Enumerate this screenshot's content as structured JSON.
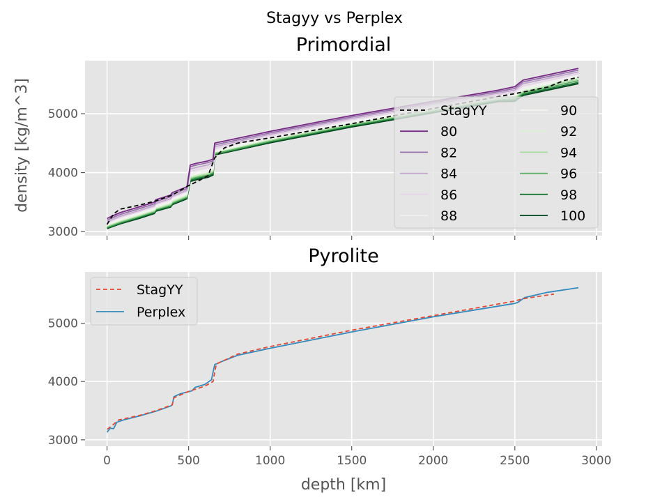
{
  "figure": {
    "suptitle": "Stagyy vs Perplex"
  },
  "chart_data": [
    {
      "type": "line",
      "title": "Primordial",
      "xlabel": "",
      "ylabel": "density [kg/m^3]",
      "xlim": [
        -135,
        3035
      ],
      "ylim": [
        2930,
        5900
      ],
      "xticks": [
        0,
        500,
        1000,
        1500,
        2000,
        2500,
        3000
      ],
      "yticks": [
        3000,
        4000,
        5000
      ],
      "show_xtick_labels": false,
      "grid": true,
      "legend": {
        "placement": "lower-right",
        "columns": 2
      },
      "series": [
        {
          "name": "StagYY",
          "style": "dashed",
          "color": "#000000",
          "x": [
            0,
            40,
            80,
            200,
            300,
            400,
            500,
            560,
            620,
            660,
            720,
            800,
            1000,
            1500,
            2000,
            2500,
            2700,
            2800,
            2890
          ],
          "y": [
            3120,
            3300,
            3380,
            3450,
            3520,
            3620,
            3780,
            3860,
            3950,
            4250,
            4420,
            4500,
            4590,
            4830,
            5090,
            5340,
            5450,
            5560,
            5620
          ]
        },
        {
          "name": "80",
          "color": "#762a83",
          "x": [
            0,
            20,
            80,
            200,
            290,
            300,
            390,
            400,
            490,
            510,
            550,
            620,
            650,
            660,
            1000,
            1500,
            2000,
            2400,
            2500,
            2550,
            2890
          ],
          "y": [
            3220,
            3250,
            3320,
            3420,
            3500,
            3540,
            3620,
            3660,
            3760,
            4130,
            4160,
            4200,
            4230,
            4500,
            4700,
            4970,
            5210,
            5400,
            5460,
            5570,
            5770
          ]
        },
        {
          "name": "82",
          "color": "#9970ab",
          "x": [
            0,
            20,
            80,
            200,
            290,
            300,
            390,
            400,
            490,
            510,
            550,
            620,
            650,
            660,
            1000,
            1500,
            2000,
            2400,
            2500,
            2550,
            2890
          ],
          "y": [
            3190,
            3220,
            3290,
            3390,
            3470,
            3510,
            3590,
            3630,
            3730,
            4100,
            4130,
            4170,
            4200,
            4470,
            4675,
            4945,
            5185,
            5375,
            5430,
            5540,
            5740
          ]
        },
        {
          "name": "84",
          "color": "#c2a5cf",
          "x": [
            0,
            20,
            80,
            200,
            290,
            300,
            390,
            400,
            490,
            510,
            550,
            620,
            650,
            660,
            1000,
            1500,
            2000,
            2400,
            2500,
            2550,
            2890
          ],
          "y": [
            3160,
            3190,
            3260,
            3360,
            3440,
            3480,
            3560,
            3600,
            3700,
            4060,
            4090,
            4130,
            4170,
            4440,
            4650,
            4920,
            5160,
            5350,
            5400,
            5510,
            5710
          ]
        },
        {
          "name": "86",
          "color": "#e7d4e8",
          "x": [
            0,
            20,
            80,
            200,
            290,
            300,
            390,
            400,
            490,
            510,
            550,
            620,
            650,
            660,
            1000,
            1500,
            2000,
            2400,
            2500,
            2550,
            2890
          ],
          "y": [
            3140,
            3170,
            3240,
            3340,
            3420,
            3460,
            3540,
            3580,
            3680,
            4020,
            4050,
            4090,
            4130,
            4410,
            4625,
            4895,
            5135,
            5325,
            5370,
            5470,
            5680
          ]
        },
        {
          "name": "88",
          "color": "#f2f0f2",
          "x": [
            0,
            20,
            80,
            200,
            290,
            300,
            390,
            400,
            490,
            510,
            550,
            620,
            650,
            660,
            1000,
            1500,
            2000,
            2400,
            2500,
            2550,
            2890
          ],
          "y": [
            3120,
            3150,
            3220,
            3320,
            3400,
            3440,
            3520,
            3560,
            3660,
            3980,
            4010,
            4050,
            4090,
            4380,
            4600,
            4870,
            5110,
            5300,
            5340,
            5440,
            5650
          ]
        },
        {
          "name": "90",
          "color": "#f1f5ee",
          "x": [
            0,
            20,
            80,
            200,
            290,
            300,
            390,
            400,
            490,
            510,
            550,
            620,
            650,
            660,
            1000,
            1500,
            2000,
            2400,
            2500,
            2550,
            2890
          ],
          "y": [
            3110,
            3140,
            3200,
            3300,
            3380,
            3420,
            3500,
            3540,
            3640,
            3950,
            3980,
            4020,
            4060,
            4360,
            4580,
            4850,
            5090,
            5280,
            5310,
            5410,
            5630
          ]
        },
        {
          "name": "92",
          "color": "#d9f0d3",
          "x": [
            0,
            20,
            80,
            200,
            290,
            300,
            390,
            400,
            490,
            510,
            550,
            620,
            650,
            660,
            1000,
            1500,
            2000,
            2400,
            2500,
            2550,
            2890
          ],
          "y": [
            3100,
            3125,
            3185,
            3285,
            3365,
            3400,
            3480,
            3520,
            3620,
            3930,
            3960,
            4000,
            4040,
            4350,
            4565,
            4835,
            5075,
            5265,
            5290,
            5390,
            5610
          ]
        },
        {
          "name": "94",
          "color": "#a6dba0",
          "x": [
            0,
            20,
            80,
            200,
            290,
            300,
            390,
            400,
            490,
            510,
            550,
            620,
            650,
            660,
            1000,
            1500,
            2000,
            2400,
            2500,
            2550,
            2890
          ],
          "y": [
            3090,
            3110,
            3170,
            3270,
            3350,
            3390,
            3460,
            3500,
            3600,
            3910,
            3940,
            3980,
            4020,
            4340,
            4550,
            4820,
            5060,
            5250,
            5270,
            5370,
            5590
          ]
        },
        {
          "name": "96",
          "color": "#5aae61",
          "x": [
            0,
            20,
            80,
            200,
            290,
            300,
            390,
            400,
            490,
            510,
            550,
            620,
            650,
            660,
            1000,
            1500,
            2000,
            2400,
            2500,
            2550,
            2890
          ],
          "y": [
            3075,
            3095,
            3155,
            3255,
            3335,
            3375,
            3445,
            3485,
            3585,
            3890,
            3920,
            3960,
            4000,
            4320,
            4535,
            4805,
            5045,
            5235,
            5250,
            5350,
            5560
          ]
        },
        {
          "name": "98",
          "color": "#1b7837",
          "x": [
            0,
            20,
            80,
            200,
            290,
            300,
            390,
            400,
            490,
            510,
            550,
            620,
            650,
            660,
            1000,
            1500,
            2000,
            2400,
            2500,
            2550,
            2890
          ],
          "y": [
            3060,
            3080,
            3140,
            3240,
            3320,
            3360,
            3430,
            3470,
            3570,
            3870,
            3900,
            3940,
            3980,
            4310,
            4520,
            4790,
            5030,
            5220,
            5230,
            5330,
            5530
          ]
        },
        {
          "name": "100",
          "color": "#00441b",
          "x": [
            0,
            20,
            80,
            200,
            290,
            300,
            390,
            400,
            490,
            510,
            550,
            620,
            650,
            660,
            1000,
            1500,
            2000,
            2400,
            2500,
            2550,
            2890
          ],
          "y": [
            3050,
            3070,
            3130,
            3225,
            3305,
            3345,
            3415,
            3455,
            3555,
            3850,
            3880,
            3920,
            3960,
            4300,
            4505,
            4775,
            5015,
            5205,
            5210,
            5310,
            5510
          ]
        }
      ]
    },
    {
      "type": "line",
      "title": "Pyrolite",
      "xlabel": "depth [km]",
      "ylabel": "",
      "xlim": [
        -135,
        3035
      ],
      "ylim": [
        2890,
        5880
      ],
      "xticks": [
        0,
        500,
        1000,
        1500,
        2000,
        2500,
        3000
      ],
      "yticks": [
        3000,
        4000,
        5000
      ],
      "show_xtick_labels": true,
      "grid": true,
      "legend": {
        "placement": "upper-left",
        "columns": 1
      },
      "series": [
        {
          "name": "StagYY",
          "style": "dashed",
          "color": "#e24a33",
          "x": [
            0,
            30,
            70,
            200,
            300,
            400,
            410,
            500,
            600,
            650,
            670,
            800,
            1000,
            1500,
            2000,
            2500,
            2550,
            2740
          ],
          "y": [
            3180,
            3240,
            3340,
            3420,
            3500,
            3600,
            3720,
            3830,
            3920,
            4000,
            4300,
            4470,
            4600,
            4880,
            5130,
            5380,
            5420,
            5500
          ]
        },
        {
          "name": "Perplex",
          "style": "solid",
          "color": "#348abd",
          "x": [
            0,
            20,
            40,
            60,
            100,
            200,
            300,
            390,
            400,
            410,
            450,
            520,
            540,
            600,
            640,
            660,
            700,
            800,
            1000,
            1500,
            2000,
            2500,
            2520,
            2560,
            2700,
            2890
          ],
          "y": [
            3130,
            3200,
            3190,
            3300,
            3340,
            3410,
            3490,
            3580,
            3600,
            3740,
            3790,
            3840,
            3900,
            3950,
            4030,
            4290,
            4340,
            4450,
            4570,
            4850,
            5110,
            5340,
            5360,
            5440,
            5530,
            5610
          ]
        }
      ]
    }
  ]
}
